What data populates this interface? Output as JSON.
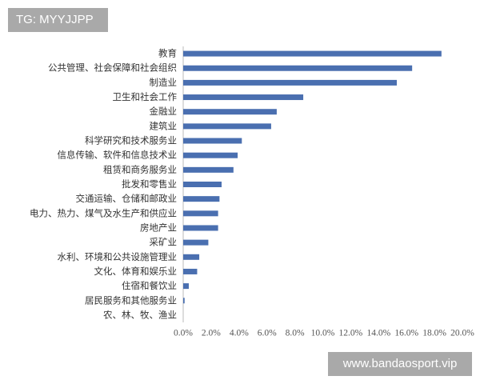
{
  "chart_data": {
    "type": "bar",
    "orientation": "horizontal",
    "categories": [
      "教育",
      "公共管理、社会保障和社会组织",
      "制造业",
      "卫生和社会工作",
      "金融业",
      "建筑业",
      "科学研究和技术服务业",
      "信息传输、软件和信息技术业",
      "租赁和商务服务业",
      "批发和零售业",
      "交通运输、仓储和邮政业",
      "电力、热力、煤气及水生产和供应业",
      "房地产业",
      "采矿业",
      "水利、环境和公共设施管理业",
      "文化、体育和娱乐业",
      "住宿和餐饮业",
      "居民服务和其他服务业",
      "农、林、牧、渔业"
    ],
    "values": [
      18.5,
      16.4,
      15.3,
      8.6,
      6.7,
      6.3,
      4.2,
      3.9,
      3.6,
      2.75,
      2.6,
      2.5,
      2.5,
      1.8,
      1.15,
      1.0,
      0.4,
      0.1,
      0.0
    ],
    "color": "#4a6fb0",
    "xlim": [
      0,
      20
    ],
    "xticks": [
      {
        "value": 0,
        "label": "0.0%"
      },
      {
        "value": 2,
        "label": "2.0%"
      },
      {
        "value": 4,
        "label": "4.0%"
      },
      {
        "value": 6,
        "label": "6.0%"
      },
      {
        "value": 8,
        "label": "8.0%"
      },
      {
        "value": 10,
        "label": "10.0%"
      },
      {
        "value": 12,
        "label": "12.0%"
      },
      {
        "value": 14,
        "label": "14.0%"
      },
      {
        "value": 16,
        "label": "16.0%"
      },
      {
        "value": 18,
        "label": "18.0%"
      },
      {
        "value": 20,
        "label": "20.0%"
      }
    ],
    "grid": false
  },
  "watermarks": [
    "TG: MYYJJPP",
    "www.bandaosport.vip"
  ]
}
